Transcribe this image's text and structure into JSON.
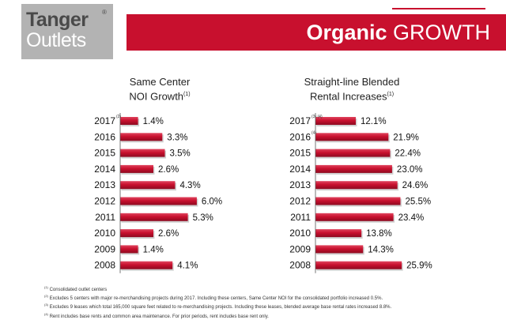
{
  "logo": {
    "line1": "Tanger",
    "line2": "Outlets",
    "mark": "®"
  },
  "banner": {
    "bold": "Organic",
    "rest": "GROWTH"
  },
  "colors": {
    "bar": "#c8102e",
    "bar_highlight": "#e0455e",
    "banner": "#c8102e"
  },
  "chart_data": [
    {
      "type": "bar",
      "orientation": "horizontal",
      "title": "Same Center NOI Growth",
      "title_lines": [
        "Same Center",
        "NOI Growth"
      ],
      "title_note": "(1)",
      "categories": [
        "2017",
        "2016",
        "2015",
        "2014",
        "2013",
        "2012",
        "2011",
        "2010",
        "2009",
        "2008"
      ],
      "category_notes": [
        "(2)",
        "",
        "",
        "",
        "",
        "",
        "",
        "",
        "",
        ""
      ],
      "values": [
        1.4,
        3.3,
        3.5,
        2.6,
        4.3,
        6.0,
        5.3,
        2.6,
        1.4,
        4.1
      ],
      "value_labels": [
        "1.4%",
        "3.3%",
        "3.5%",
        "2.6%",
        "4.3%",
        "6.0%",
        "5.3%",
        "2.6%",
        "1.4%",
        "4.1%"
      ],
      "xlim": [
        0,
        6.5
      ],
      "unit": "%",
      "grid": false,
      "legend": false
    },
    {
      "type": "bar",
      "orientation": "horizontal",
      "title": "Straight-line Blended Rental Increases",
      "title_lines": [
        "Straight-line Blended",
        "Rental Increases"
      ],
      "title_note": "(1)",
      "categories": [
        "2017",
        "2016",
        "2015",
        "2014",
        "2013",
        "2012",
        "2011",
        "2010",
        "2009",
        "2008"
      ],
      "category_notes": [
        "(3) (4)",
        "(4)",
        "",
        "",
        "",
        "",
        "",
        "",
        "",
        ""
      ],
      "values": [
        12.1,
        21.9,
        22.4,
        23.0,
        24.6,
        25.5,
        23.4,
        13.8,
        14.3,
        25.9
      ],
      "value_labels": [
        "12.1%",
        "21.9%",
        "22.4%",
        "23.0%",
        "24.6%",
        "25.5%",
        "23.4%",
        "13.8%",
        "14.3%",
        "25.9%"
      ],
      "xlim": [
        0,
        28
      ],
      "unit": "%",
      "grid": false,
      "legend": false
    }
  ],
  "footnotes": [
    {
      "mark": "(1)",
      "text": "Consolidated outlet centers"
    },
    {
      "mark": "(2)",
      "text": "Excludes 5 centers with major re-merchandising projects during 2017. Including these centers, Same Center NOI for the consolidated portfolio increased 0.5%."
    },
    {
      "mark": "(3)",
      "text": "Excludes 9 leases which total 165,000 square feet related to re-merchandising projects. Including these leases, blended average base rental rates increased 8.8%."
    },
    {
      "mark": "(4)",
      "text": "Rent includes base rents and common area maintenance. For prior periods, rent includes base rent only."
    }
  ]
}
